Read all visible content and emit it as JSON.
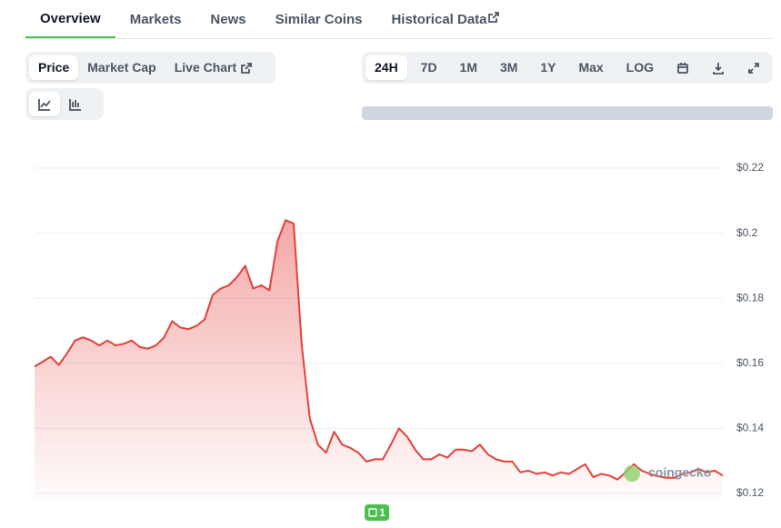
{
  "tabs": [
    "Overview",
    "Markets",
    "News",
    "Similar Coins",
    "Historical Data"
  ],
  "chart_toggles": [
    "Price",
    "Market Cap",
    "Live Chart"
  ],
  "ranges": [
    "24H",
    "7D",
    "1M",
    "3M",
    "1Y",
    "Max",
    "LOG"
  ],
  "watermark": "coingecko",
  "badge": "1",
  "chart_data": {
    "type": "line",
    "series": [
      {
        "name": "Price",
        "color": "#e5403a",
        "values": [
          0.159,
          0.1605,
          0.162,
          0.1595,
          0.163,
          0.167,
          0.168,
          0.167,
          0.1655,
          0.167,
          0.1655,
          0.166,
          0.167,
          0.165,
          0.1645,
          0.1655,
          0.168,
          0.173,
          0.171,
          0.1705,
          0.1715,
          0.1735,
          0.181,
          0.183,
          0.184,
          0.1865,
          0.19,
          0.183,
          0.184,
          0.1825,
          0.1975,
          0.204,
          0.203,
          0.1655,
          0.143,
          0.135,
          0.1325,
          0.139,
          0.135,
          0.134,
          0.1325,
          0.1298,
          0.1305,
          0.1305,
          0.135,
          0.14,
          0.1375,
          0.1335,
          0.1305,
          0.1305,
          0.132,
          0.131,
          0.1335,
          0.1335,
          0.133,
          0.135,
          0.132,
          0.1305,
          0.1298,
          0.1298,
          0.1265,
          0.127,
          0.126,
          0.1265,
          0.1255,
          0.1265,
          0.126,
          0.1275,
          0.129,
          0.125,
          0.126,
          0.1255,
          0.1243,
          0.1265,
          0.129,
          0.127,
          0.126,
          0.1253,
          0.1248,
          0.1248,
          0.126,
          0.1265,
          0.1275,
          0.1265,
          0.127,
          0.1255
        ]
      }
    ],
    "ylim": [
      0.12,
      0.22
    ],
    "yticks": [
      {
        "value": 0.12,
        "label": "$0.12"
      },
      {
        "value": 0.14,
        "label": "$0.14"
      },
      {
        "value": 0.16,
        "label": "$0.16"
      },
      {
        "value": 0.18,
        "label": "$0.18"
      },
      {
        "value": 0.2,
        "label": "$0.2"
      },
      {
        "value": 0.22,
        "label": "$0.22"
      }
    ],
    "grid": true
  }
}
